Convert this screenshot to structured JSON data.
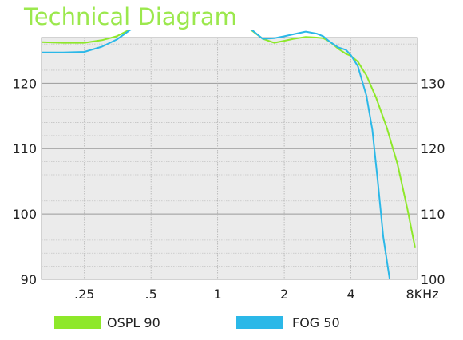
{
  "chart_data": {
    "type": "line",
    "title": "Technical Diagram",
    "x_scale": "log",
    "x_ticks": [
      {
        "label": ".25",
        "value": 0.25
      },
      {
        "label": ".5",
        "value": 0.5
      },
      {
        "label": "1",
        "value": 1
      },
      {
        "label": "2",
        "value": 2
      },
      {
        "label": "4",
        "value": 4
      },
      {
        "label": "8KHz",
        "value": 8
      }
    ],
    "xlim": [
      0.16,
      8
    ],
    "y_left": {
      "ylim": [
        90,
        127
      ],
      "ticks": [
        90,
        100,
        110,
        120
      ]
    },
    "y_right": {
      "ylim": [
        100,
        137
      ],
      "ticks": [
        100,
        110,
        120,
        130
      ]
    },
    "grid": true,
    "legend": "bottom",
    "series": [
      {
        "name": "OSPL 90",
        "color": "#8ee82a",
        "axis": "right",
        "x": [
          0.16,
          0.2,
          0.25,
          0.3,
          0.35,
          0.4,
          0.5,
          0.6,
          0.7,
          0.8,
          0.9,
          1.0,
          1.2,
          1.4,
          1.6,
          1.8,
          2.0,
          2.2,
          2.5,
          2.8,
          3.0,
          3.2,
          3.5,
          3.8,
          4.0,
          4.3,
          4.7,
          5.2,
          5.8,
          6.5,
          7.2,
          7.8
        ],
        "values": [
          136.3,
          136.2,
          136.2,
          136.6,
          137.2,
          138.2,
          139.7,
          140.7,
          141.4,
          141.8,
          141.6,
          141.0,
          139.7,
          138.3,
          136.8,
          136.2,
          136.5,
          136.8,
          137.1,
          137.0,
          136.9,
          136.4,
          135.3,
          134.5,
          134.2,
          133.3,
          131.2,
          127.8,
          123.3,
          117.6,
          110.8,
          104.8
        ]
      },
      {
        "name": "FOG 50",
        "color": "#2bb8e8",
        "axis": "left",
        "x": [
          0.16,
          0.2,
          0.25,
          0.3,
          0.35,
          0.4,
          0.5,
          0.6,
          0.7,
          0.8,
          0.9,
          1.0,
          1.2,
          1.4,
          1.6,
          1.8,
          2.0,
          2.2,
          2.5,
          2.8,
          3.0,
          3.2,
          3.5,
          3.8,
          4.0,
          4.3,
          4.7,
          5.0,
          5.3,
          5.6,
          6.0
        ],
        "values": [
          124.7,
          124.7,
          124.8,
          125.6,
          126.7,
          128.1,
          129.8,
          131.0,
          131.8,
          132.3,
          132.1,
          131.6,
          130.2,
          128.4,
          126.8,
          126.9,
          127.2,
          127.5,
          127.9,
          127.6,
          127.2,
          126.4,
          125.5,
          125.1,
          124.3,
          122.6,
          118.1,
          112.9,
          104.8,
          96.5,
          89.8
        ]
      }
    ]
  }
}
